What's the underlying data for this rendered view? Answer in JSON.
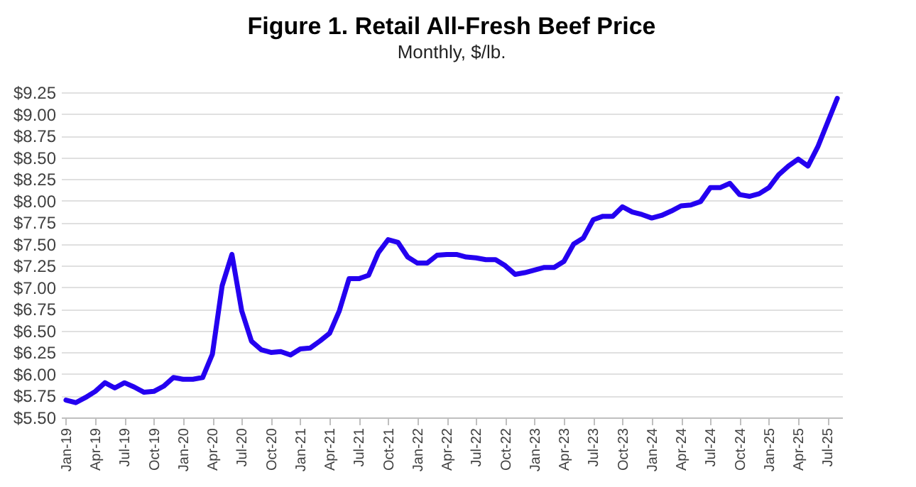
{
  "chart_data": {
    "type": "line",
    "title": "Figure 1. Retail All-Fresh Beef Price",
    "subtitle": "Monthly, $/lb.",
    "categories": [
      "Jan-19",
      null,
      null,
      "Apr-19",
      null,
      null,
      "Jul-19",
      null,
      null,
      "Oct-19",
      null,
      null,
      "Jan-20",
      null,
      null,
      "Apr-20",
      null,
      null,
      "Jul-20",
      null,
      null,
      "Oct-20",
      null,
      null,
      "Jan-21",
      null,
      null,
      "Apr-21",
      null,
      null,
      "Jul-21",
      null,
      null,
      "Oct-21",
      null,
      null,
      "Jan-22",
      null,
      null,
      "Apr-22",
      null,
      null,
      "Jul-22",
      null,
      null,
      "Oct-22",
      null,
      null,
      "Jan-23",
      null,
      null,
      "Apr-23",
      null,
      null,
      "Jul-23",
      null,
      null,
      "Oct-23",
      null,
      null,
      "Jan-24",
      null,
      null,
      "Apr-24",
      null,
      null,
      "Jul-24",
      null,
      null,
      "Oct-24",
      null,
      null,
      "Jan-25",
      null,
      null,
      "Apr-25",
      null,
      null,
      "Jul-25",
      null
    ],
    "series": [
      {
        "color": "#2400f0",
        "values": [
          5.7,
          5.67,
          5.73,
          5.8,
          5.9,
          5.84,
          5.9,
          5.85,
          5.79,
          5.8,
          5.86,
          5.96,
          5.94,
          5.94,
          5.96,
          6.23,
          7.02,
          7.38,
          6.73,
          6.38,
          6.28,
          6.25,
          6.26,
          6.22,
          6.29,
          6.3,
          6.38,
          6.47,
          6.73,
          7.1,
          7.1,
          7.14,
          7.4,
          7.55,
          7.52,
          7.35,
          7.28,
          7.28,
          7.37,
          7.38,
          7.38,
          7.35,
          7.34,
          7.32,
          7.32,
          7.25,
          7.15,
          7.17,
          7.2,
          7.23,
          7.23,
          7.3,
          7.5,
          7.57,
          7.78,
          7.82,
          7.82,
          7.93,
          7.87,
          7.84,
          7.8,
          7.83,
          7.88,
          7.94,
          7.95,
          7.99,
          8.15,
          8.15,
          8.2,
          8.07,
          8.05,
          8.08,
          8.15,
          8.3,
          8.4,
          8.48,
          8.4,
          8.62,
          8.9,
          9.18
        ]
      }
    ],
    "ylim": [
      5.5,
      9.25
    ],
    "yticks": [
      {
        "value": 5.5,
        "label": "$5.50"
      },
      {
        "value": 5.75,
        "label": "$5.75"
      },
      {
        "value": 6,
        "label": "$6.00"
      },
      {
        "value": 6.25,
        "label": "$6.25"
      },
      {
        "value": 6.5,
        "label": "$6.50"
      },
      {
        "value": 6.75,
        "label": "$6.75"
      },
      {
        "value": 7,
        "label": "$7.00"
      },
      {
        "value": 7.25,
        "label": "$7.25"
      },
      {
        "value": 7.5,
        "label": "$7.50"
      },
      {
        "value": 7.75,
        "label": "$7.75"
      },
      {
        "value": 8,
        "label": "$8.00"
      },
      {
        "value": 8.25,
        "label": "$8.25"
      },
      {
        "value": 8.5,
        "label": "$8.50"
      },
      {
        "value": 8.75,
        "label": "$8.75"
      },
      {
        "value": 9,
        "label": "$9.00"
      },
      {
        "value": 9.25,
        "label": "$9.25"
      }
    ],
    "grid": "y",
    "marker": "none",
    "line_style": "solid"
  }
}
